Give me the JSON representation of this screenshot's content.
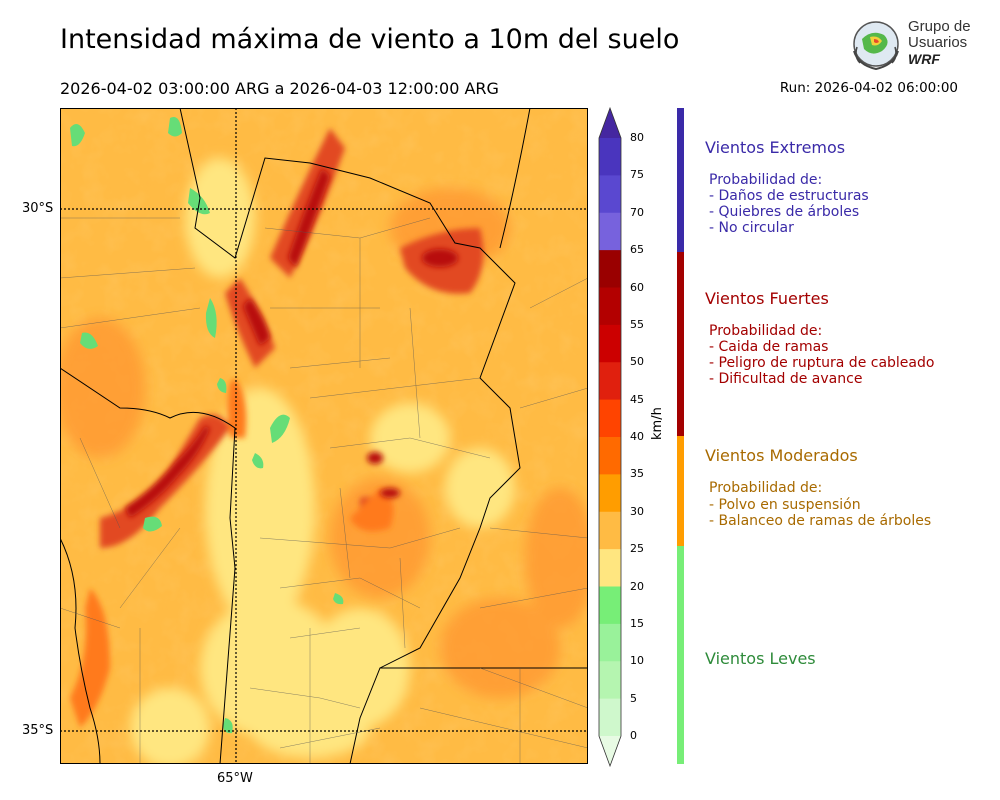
{
  "header": {
    "title": "Intensidad máxima de viento a 10m del suelo",
    "period": "2026-04-02 03:00:00 ARG  a  2026-04-03 12:00:00 ARG",
    "run": "Run: 2026-04-02 06:00:00"
  },
  "logo": {
    "line1": "Grupo de",
    "line2": "Usuarios",
    "line3": "WRF"
  },
  "map": {
    "lat_labels": [
      "30°S",
      "35°S"
    ],
    "lon_labels": [
      "65°W"
    ],
    "field_colors": {
      "light": "#ffe680",
      "moderate": "#ffbb44",
      "orange": "#ff9933",
      "strong": "#e24a20",
      "extreme": "#b81010",
      "green": "#66dd77"
    }
  },
  "colorbar": {
    "unit": "km/h",
    "ticks": [
      "80",
      "75",
      "70",
      "65",
      "60",
      "55",
      "50",
      "45",
      "40",
      "35",
      "30",
      "25",
      "20",
      "15",
      "10",
      "5",
      "0"
    ],
    "colors": [
      "#4527a0",
      "#4a35be",
      "#5a48d0",
      "#7762dd",
      "#9a0000",
      "#b30000",
      "#cc0000",
      "#e0200e",
      "#ff4400",
      "#ff6a00",
      "#ff9d00",
      "#ffbb44",
      "#ffe680",
      "#77ee77",
      "#99f29a",
      "#b5f5b0",
      "#cff8cc",
      "#e8fbe4"
    ]
  },
  "categories": [
    {
      "title": "Vientos Extremos",
      "color": "#3a2aa8",
      "lines": [
        "Probabilidad de:",
        "- Daños de estructuras",
        "- Quiebres de árboles",
        "- No circular"
      ]
    },
    {
      "title": "Vientos Fuertes",
      "color": "#a30000",
      "lines": [
        "Probabilidad de:",
        "- Caida de ramas",
        "- Peligro de ruptura de cableado",
        "- Dificultad de avance"
      ]
    },
    {
      "title": "Vientos Moderados",
      "color": "#a86a00",
      "lines": [
        "Probabilidad de:",
        "- Polvo en suspensión",
        "- Balanceo de ramas de árboles"
      ]
    },
    {
      "title": "Vientos Leves",
      "color": "#2e8b3a",
      "lines": []
    }
  ]
}
